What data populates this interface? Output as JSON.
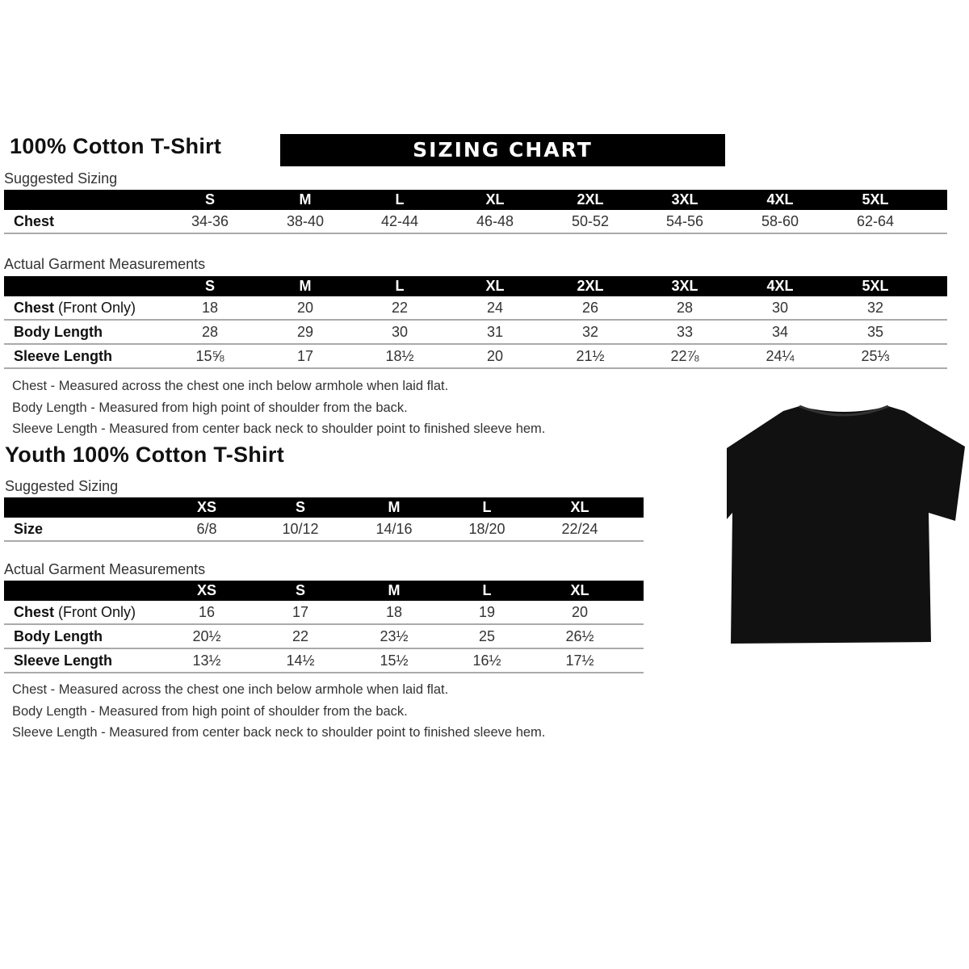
{
  "adult": {
    "title": "100% Cotton T-Shirt",
    "banner": "SIZING CHART",
    "suggested": {
      "label": "Suggested Sizing",
      "sizes": [
        "S",
        "M",
        "L",
        "XL",
        "2XL",
        "3XL",
        "4XL",
        "5XL"
      ],
      "rows": [
        {
          "label": "Chest",
          "values": [
            "34-36",
            "38-40",
            "42-44",
            "46-48",
            "50-52",
            "54-56",
            "58-60",
            "62-64"
          ]
        }
      ]
    },
    "actual": {
      "label": "Actual Garment Measurements",
      "sizes": [
        "S",
        "M",
        "L",
        "XL",
        "2XL",
        "3XL",
        "4XL",
        "5XL"
      ],
      "rows": [
        {
          "label": "Chest",
          "label_suffix": " (Front Only)",
          "values": [
            "18",
            "20",
            "22",
            "24",
            "26",
            "28",
            "30",
            "32"
          ]
        },
        {
          "label": "Body Length",
          "label_suffix": "",
          "values": [
            "28",
            "29",
            "30",
            "31",
            "32",
            "33",
            "34",
            "35"
          ]
        },
        {
          "label": "Sleeve Length",
          "label_suffix": "",
          "values": [
            "15⅝",
            "17",
            "18½",
            "20",
            "21½",
            "22⅞",
            "24¼",
            "25⅓"
          ]
        }
      ]
    },
    "notes": [
      "Chest - Measured across the chest one inch below armhole when laid flat.",
      "Body Length - Measured from high point of shoulder from the back.",
      "Sleeve Length - Measured from center back neck to shoulder point to finished sleeve hem."
    ]
  },
  "youth": {
    "title": "Youth 100% Cotton T-Shirt",
    "suggested": {
      "label": "Suggested Sizing",
      "sizes": [
        "XS",
        "S",
        "M",
        "L",
        "XL"
      ],
      "rows": [
        {
          "label": "Size",
          "values": [
            "6/8",
            "10/12",
            "14/16",
            "18/20",
            "22/24"
          ]
        }
      ]
    },
    "actual": {
      "label": "Actual Garment Measurements",
      "sizes": [
        "XS",
        "S",
        "M",
        "L",
        "XL"
      ],
      "rows": [
        {
          "label": "Chest",
          "label_suffix": " (Front Only)",
          "values": [
            "16",
            "17",
            "18",
            "19",
            "20"
          ]
        },
        {
          "label": "Body Length",
          "label_suffix": "",
          "values": [
            "20½",
            "22",
            "23½",
            "25",
            "26½"
          ]
        },
        {
          "label": "Sleeve Length",
          "label_suffix": "",
          "values": [
            "13½",
            "14½",
            "15½",
            "16½",
            "17½"
          ]
        }
      ]
    },
    "notes": [
      "Chest - Measured across the chest one inch below armhole when laid flat.",
      "Body Length - Measured from high point of shoulder from the back.",
      "Sleeve Length - Measured from center back neck to shoulder point to finished sleeve hem."
    ]
  },
  "image": {
    "icon": "t-shirt-icon",
    "color": "#111111"
  }
}
